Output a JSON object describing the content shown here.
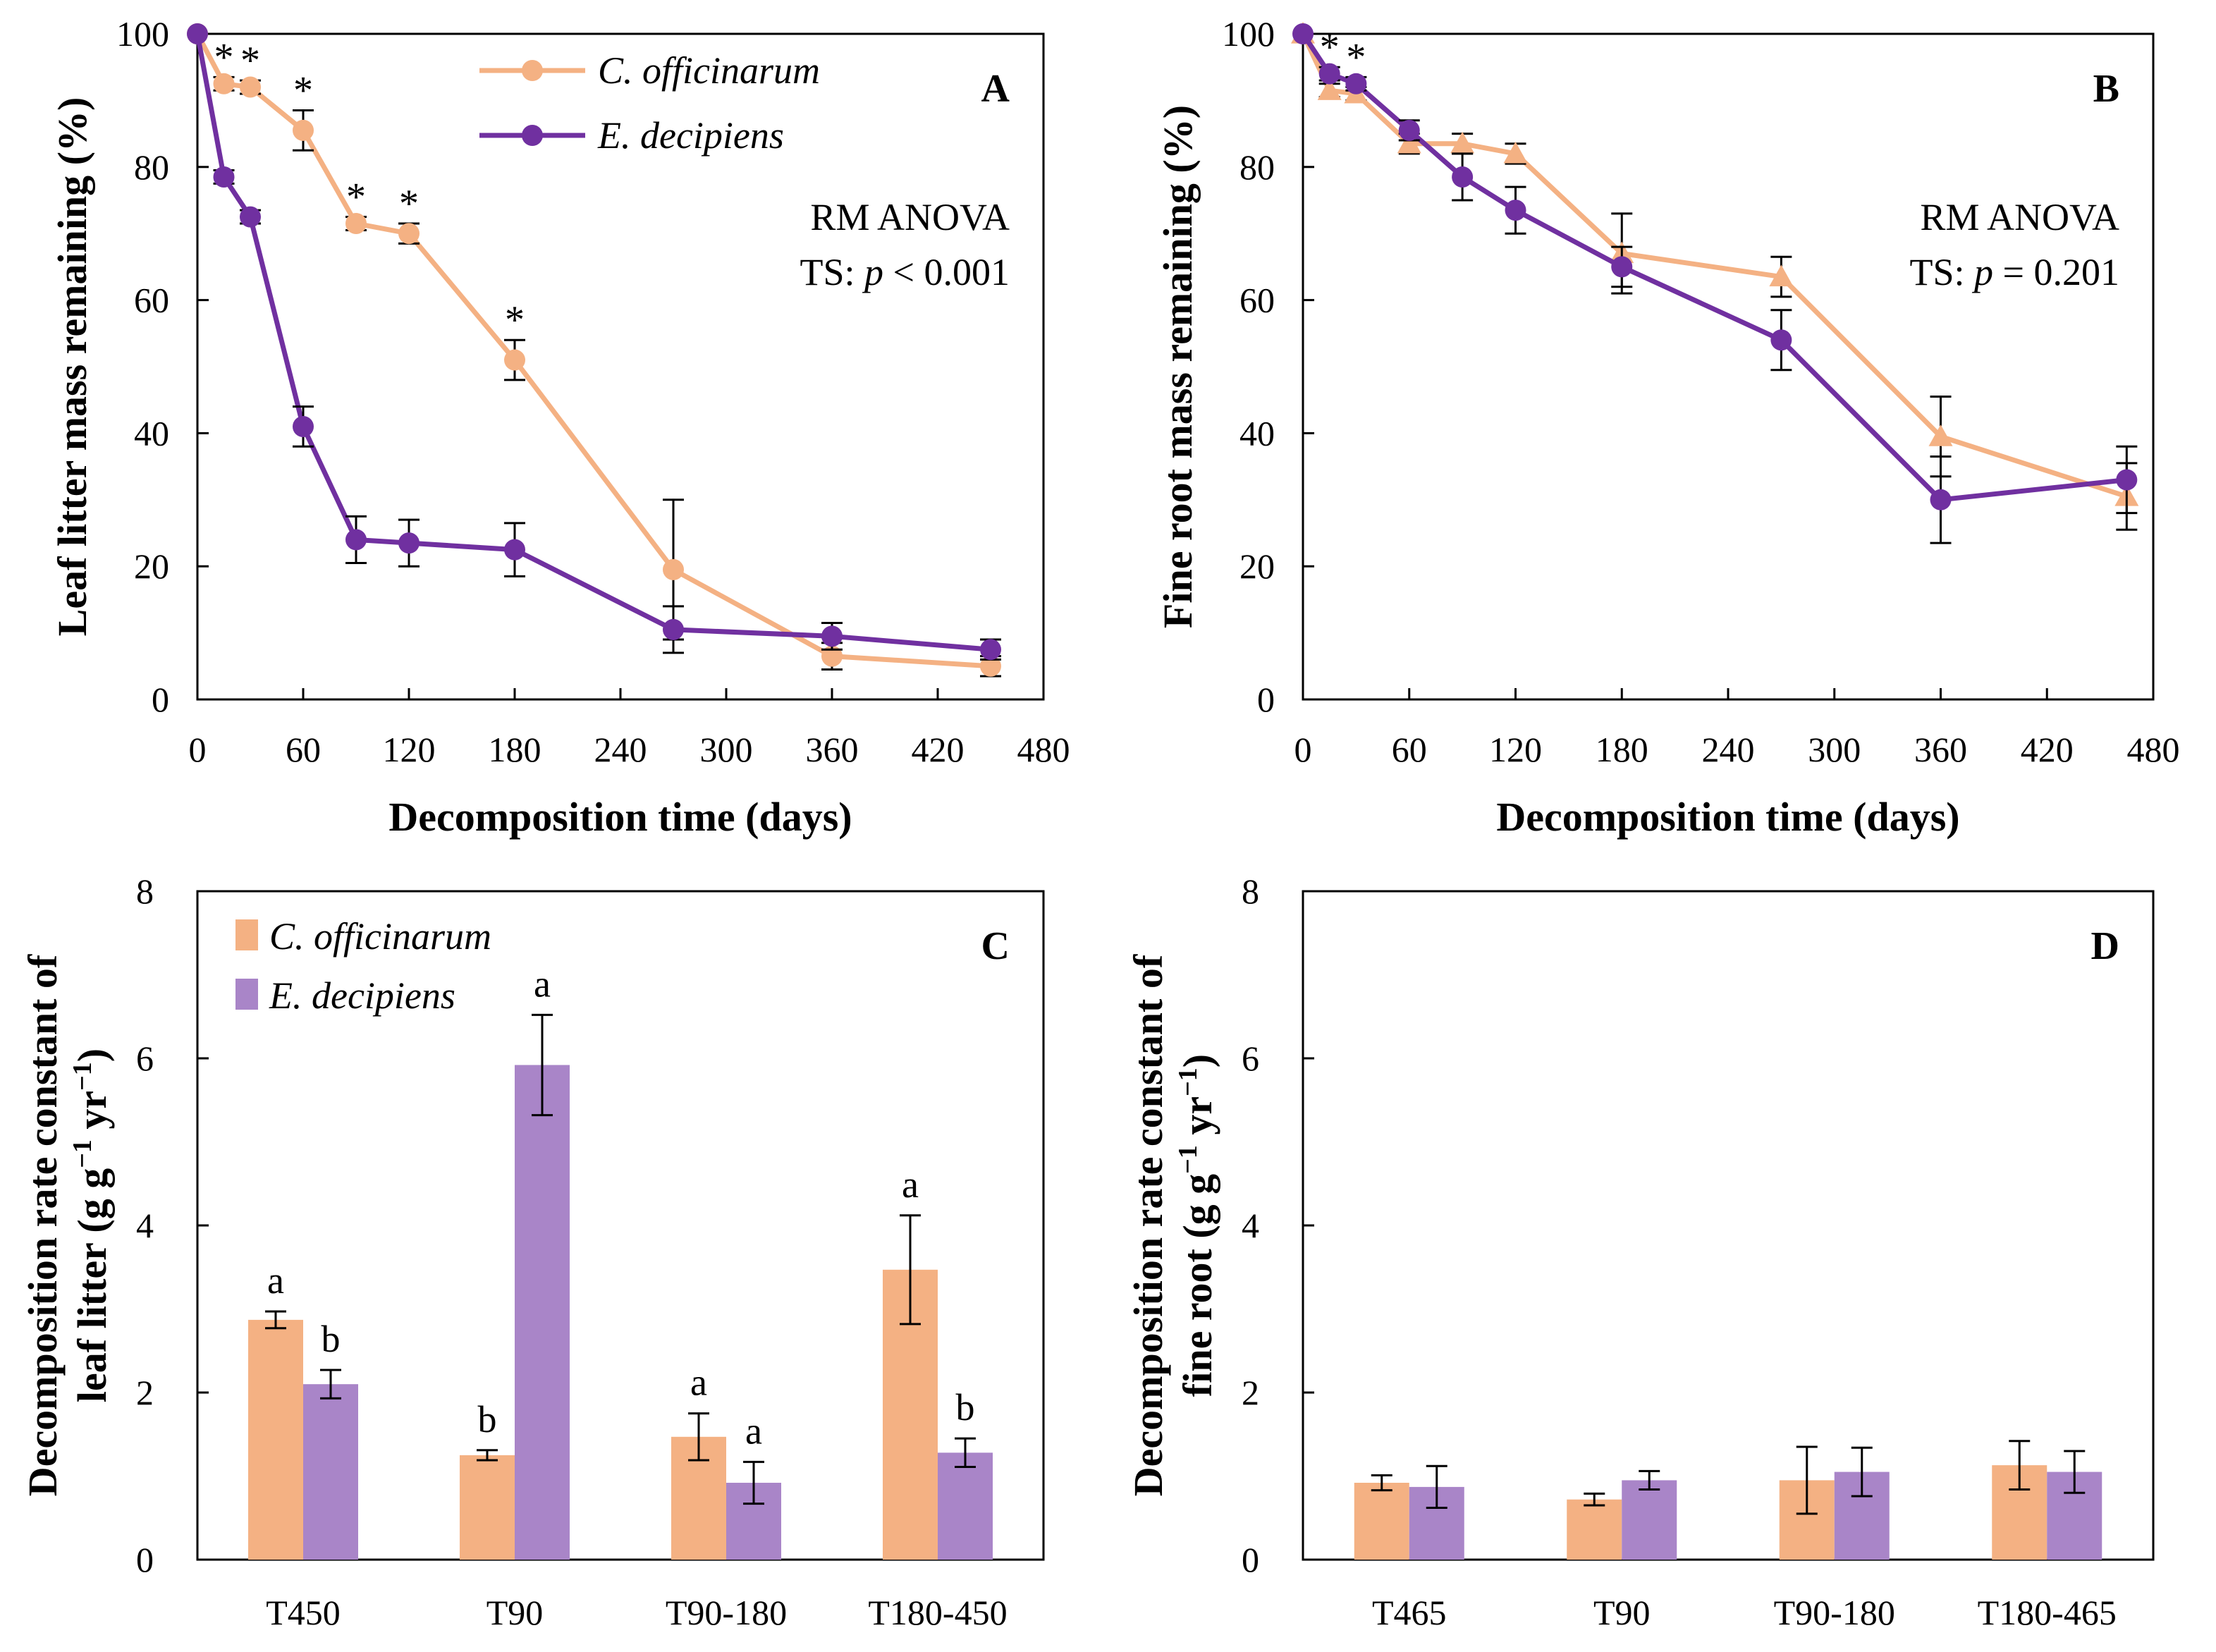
{
  "colors": {
    "orange_line": "#F4B183",
    "purple_line": "#7030A0",
    "orange_bar": "#F4B183",
    "purple_bar": "#A985C8",
    "axis": "#000000"
  },
  "chart_data": [
    {
      "id": "A",
      "type": "line",
      "panel_label": "A",
      "xlabel": "Decomposition time (days)",
      "ylabel": "Leaf litter mass remaining (%)",
      "xlim": [
        0,
        480
      ],
      "ylim": [
        0,
        100
      ],
      "xticks": [
        "0",
        "60",
        "120",
        "180",
        "240",
        "300",
        "360",
        "420",
        "480"
      ],
      "yticks": [
        "0",
        "20",
        "40",
        "60",
        "80",
        "100"
      ],
      "legend": [
        "C. officinarum",
        "E. decipiens"
      ],
      "annotation": [
        "RM ANOVA",
        "TS: ",
        "p",
        " < 0.001"
      ],
      "significance_marker": "*",
      "series": [
        {
          "name": "C. officinarum",
          "marker": "circle",
          "x": [
            0,
            15,
            30,
            60,
            90,
            120,
            180,
            270,
            360,
            450
          ],
          "y": [
            100,
            92.5,
            92,
            85.5,
            71.5,
            70,
            51,
            19.5,
            6.5,
            5
          ],
          "err": [
            0,
            1,
            1,
            3,
            1,
            1.5,
            3,
            10.5,
            2,
            1.5
          ]
        },
        {
          "name": "E. decipiens",
          "marker": "circle",
          "x": [
            0,
            15,
            30,
            60,
            90,
            120,
            180,
            270,
            360,
            450
          ],
          "y": [
            100,
            78.5,
            72.5,
            41,
            24,
            23.5,
            22.5,
            10.5,
            9.5,
            7.5
          ],
          "err": [
            0,
            1,
            1,
            3,
            3.5,
            3.5,
            4,
            3.5,
            2,
            1.5
          ]
        }
      ],
      "significant_x": [
        15,
        30,
        60,
        90,
        120,
        180
      ]
    },
    {
      "id": "B",
      "type": "line",
      "panel_label": "B",
      "xlabel": "Decomposition time (days)",
      "ylabel": "Fine root mass remaining (%)",
      "xlim": [
        0,
        480
      ],
      "ylim": [
        0,
        100
      ],
      "xticks": [
        "0",
        "60",
        "120",
        "180",
        "240",
        "300",
        "360",
        "420",
        "480"
      ],
      "yticks": [
        "0",
        "20",
        "40",
        "60",
        "80",
        "100"
      ],
      "annotation": [
        "RM ANOVA",
        "TS: ",
        "p",
        " = 0.201"
      ],
      "significance_marker": "*",
      "series": [
        {
          "name": "C. officinarum",
          "marker": "triangle",
          "x": [
            0,
            15,
            30,
            60,
            90,
            120,
            180,
            270,
            360,
            465
          ],
          "y": [
            100,
            91.5,
            91,
            83.5,
            83.5,
            82,
            67,
            63.5,
            39.5,
            30.5
          ],
          "err": [
            0,
            1,
            1,
            1.5,
            1.5,
            1.5,
            6,
            3,
            6,
            5
          ]
        },
        {
          "name": "E. decipiens",
          "marker": "circle",
          "x": [
            0,
            15,
            30,
            60,
            90,
            120,
            180,
            270,
            360,
            465
          ],
          "y": [
            100,
            94,
            92.5,
            85.5,
            78.5,
            73.5,
            65,
            54,
            30,
            33
          ],
          "err": [
            0,
            1,
            1,
            1.5,
            3.5,
            3.5,
            3,
            4.5,
            6.5,
            5
          ]
        }
      ],
      "significant_x": [
        15,
        30
      ]
    },
    {
      "id": "C",
      "type": "bar",
      "panel_label": "C",
      "ylabel": [
        "Decomposition rate constant of",
        "leaf litter (g g",
        "−1",
        " yr",
        "−1",
        ")"
      ],
      "ylim": [
        0,
        8
      ],
      "yticks": [
        "0",
        "2",
        "4",
        "6",
        "8"
      ],
      "categories": [
        "T450",
        "T90",
        "T90-180",
        "T180-450"
      ],
      "legend": [
        "C. officinarum",
        "E. decipiens"
      ],
      "series": [
        {
          "name": "C. officinarum",
          "values": [
            2.87,
            1.25,
            1.47,
            3.47
          ],
          "err": [
            0.1,
            0.06,
            0.28,
            0.65
          ],
          "letters": [
            "a",
            "b",
            "a",
            "a"
          ]
        },
        {
          "name": "E. decipiens",
          "values": [
            2.1,
            5.92,
            0.92,
            1.28
          ],
          "err": [
            0.17,
            0.6,
            0.25,
            0.17
          ],
          "letters": [
            "b",
            "a",
            "a",
            "b"
          ]
        }
      ]
    },
    {
      "id": "D",
      "type": "bar",
      "panel_label": "D",
      "ylabel": [
        "Decomposition rate constant of",
        "fine root (g g",
        "−1",
        " yr",
        "−1",
        ")"
      ],
      "ylim": [
        0,
        8
      ],
      "yticks": [
        "0",
        "2",
        "4",
        "6",
        "8"
      ],
      "categories": [
        "T465",
        "T90",
        "T90-180",
        "T180-465"
      ],
      "series": [
        {
          "name": "C. officinarum",
          "values": [
            0.92,
            0.72,
            0.95,
            1.13
          ],
          "err": [
            0.09,
            0.07,
            0.4,
            0.29
          ]
        },
        {
          "name": "E. decipiens",
          "values": [
            0.87,
            0.95,
            1.05,
            1.05
          ],
          "err": [
            0.25,
            0.11,
            0.29,
            0.25
          ]
        }
      ]
    }
  ]
}
